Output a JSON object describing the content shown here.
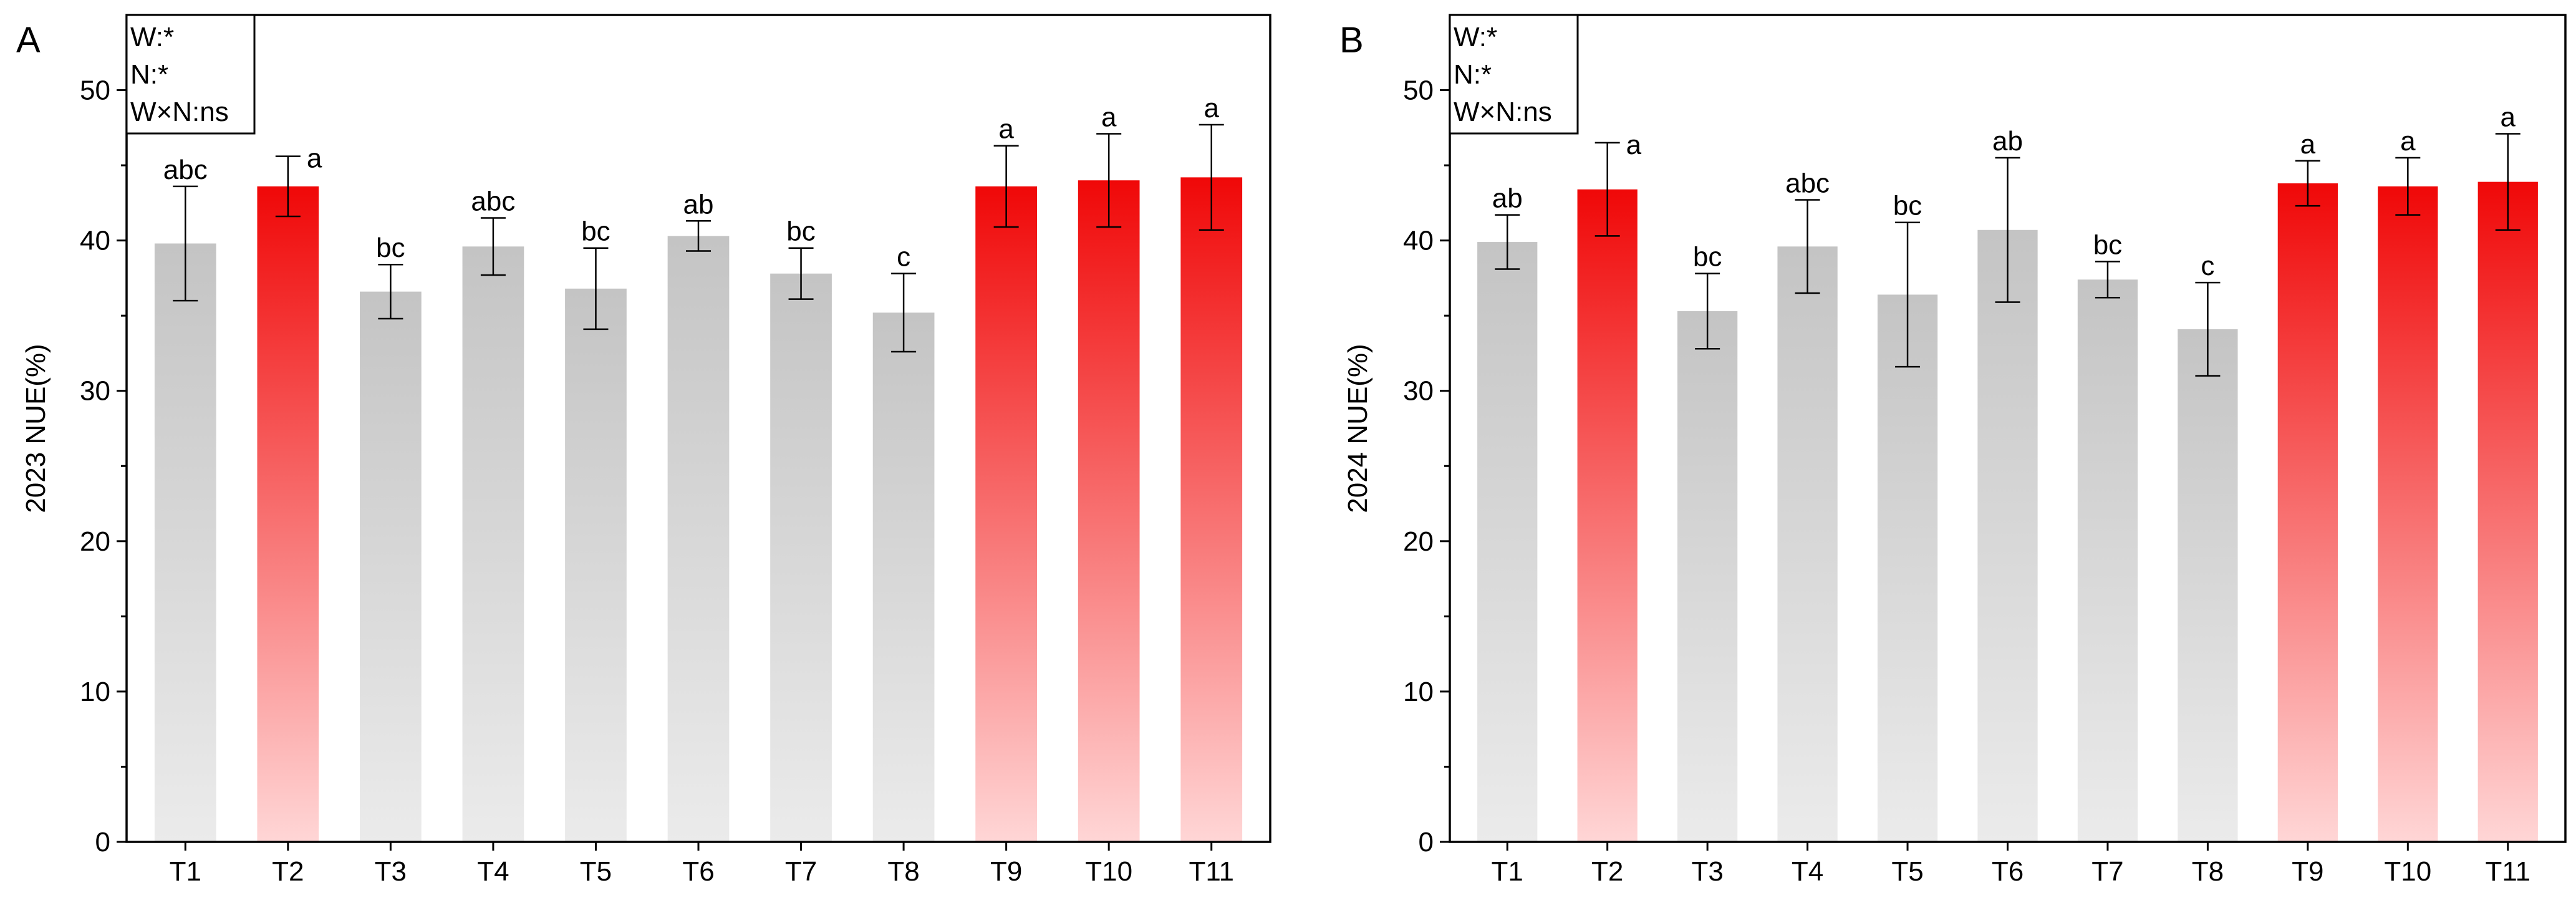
{
  "chart_data": [
    {
      "type": "bar",
      "panel_label": "A",
      "ylabel": "2023 NUE(%)",
      "xlabel": "",
      "ylim": [
        0,
        55
      ],
      "yticks": [
        0,
        10,
        20,
        30,
        40,
        50
      ],
      "grid": false,
      "stats_box": [
        "W:*",
        "N:*",
        "W×N:ns"
      ],
      "categories": [
        "T1",
        "T2",
        "T3",
        "T4",
        "T5",
        "T6",
        "T7",
        "T8",
        "T9",
        "T10",
        "T11"
      ],
      "values": [
        39.8,
        43.6,
        36.6,
        39.6,
        36.8,
        40.3,
        37.8,
        35.2,
        43.6,
        44.0,
        44.2
      ],
      "errors": [
        3.8,
        2.0,
        1.8,
        1.9,
        2.7,
        1.0,
        1.7,
        2.6,
        2.7,
        3.1,
        3.5
      ],
      "significance": [
        "abc",
        "a",
        "bc",
        "abc",
        "bc",
        "ab",
        "bc",
        "c",
        "a",
        "a",
        "a"
      ],
      "highlight": [
        false,
        true,
        false,
        false,
        false,
        false,
        false,
        false,
        true,
        true,
        true
      ]
    },
    {
      "type": "bar",
      "panel_label": "B",
      "ylabel": "2024 NUE(%)",
      "xlabel": "",
      "ylim": [
        0,
        55
      ],
      "yticks": [
        0,
        10,
        20,
        30,
        40,
        50
      ],
      "grid": false,
      "stats_box": [
        "W:*",
        "N:*",
        "W×N:ns"
      ],
      "categories": [
        "T1",
        "T2",
        "T3",
        "T4",
        "T5",
        "T6",
        "T7",
        "T8",
        "T9",
        "T10",
        "T11"
      ],
      "values": [
        39.9,
        43.4,
        35.3,
        39.6,
        36.4,
        40.7,
        37.4,
        34.1,
        43.8,
        43.6,
        43.9
      ],
      "errors": [
        1.8,
        3.1,
        2.5,
        3.1,
        4.8,
        4.8,
        1.2,
        3.1,
        1.5,
        1.9,
        3.2
      ],
      "significance": [
        "ab",
        "a",
        "bc",
        "abc",
        "bc",
        "ab",
        "bc",
        "c",
        "a",
        "a",
        "a"
      ],
      "highlight": [
        false,
        true,
        false,
        false,
        false,
        false,
        false,
        false,
        true,
        true,
        true
      ]
    }
  ],
  "colors": {
    "grey_top": "#c4c4c4",
    "grey_bottom": "#ebebeb",
    "red_top": "#f00808",
    "red_bottom": "#ffd6d6",
    "axis": "#000000"
  }
}
